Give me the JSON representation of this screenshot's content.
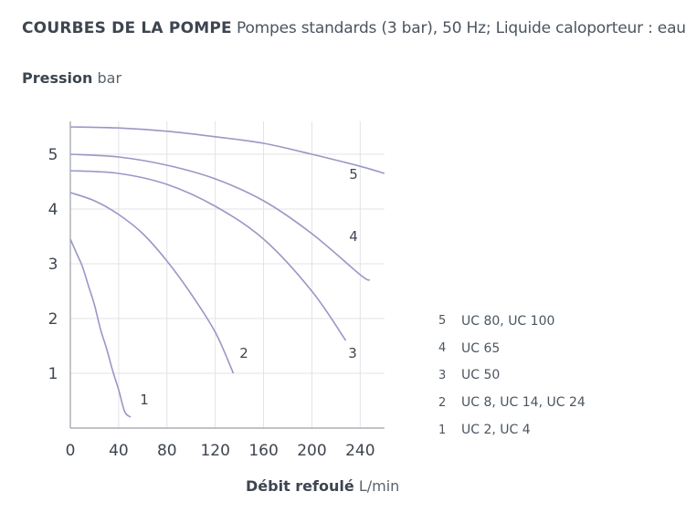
{
  "header": {
    "title_bold": "COURBES DE LA POMPE",
    "title_rest": "Pompes standards (3 bar), 50 Hz; Liquide caloporteur : eau"
  },
  "axis": {
    "y_bold": "Pression",
    "y_unit": "bar",
    "x_bold": "Débit refoulé",
    "x_unit": "L/min"
  },
  "colors": {
    "curve": "#9a97c6",
    "grid": "#e3e3e6",
    "axis": "#9aa0a7",
    "text": "#3d4550"
  },
  "chart_data": {
    "type": "line",
    "title": "COURBES DE LA POMPE Pompes standards (3 bar), 50 Hz; Liquide caloporteur : eau",
    "xlabel": "Débit refoulé L/min",
    "ylabel": "Pression bar",
    "xlim": [
      0,
      260
    ],
    "ylim": [
      0,
      5.6
    ],
    "xticks": [
      0,
      40,
      80,
      120,
      160,
      200,
      240
    ],
    "yticks": [
      1,
      2,
      3,
      4,
      5
    ],
    "grid": true,
    "legend_position": "right",
    "series": [
      {
        "name": "UC 2, UC 4",
        "number": "1",
        "x": [
          0,
          5,
          10,
          15,
          20,
          25,
          30,
          35,
          40,
          45,
          50
        ],
        "y": [
          3.45,
          3.2,
          2.95,
          2.6,
          2.25,
          1.8,
          1.45,
          1.05,
          0.7,
          0.3,
          0.2
        ]
      },
      {
        "name": "UC 8, UC 14, UC 24",
        "number": "2",
        "x": [
          0,
          20,
          40,
          60,
          80,
          100,
          120,
          135
        ],
        "y": [
          4.3,
          4.15,
          3.9,
          3.55,
          3.05,
          2.45,
          1.75,
          1.0
        ]
      },
      {
        "name": "UC 50",
        "number": "3",
        "x": [
          0,
          40,
          80,
          120,
          160,
          200,
          228
        ],
        "y": [
          4.7,
          4.65,
          4.45,
          4.05,
          3.45,
          2.5,
          1.6
        ]
      },
      {
        "name": "UC 65",
        "number": "4",
        "x": [
          0,
          40,
          80,
          120,
          160,
          200,
          240,
          248
        ],
        "y": [
          5.0,
          4.95,
          4.8,
          4.55,
          4.15,
          3.55,
          2.8,
          2.7
        ]
      },
      {
        "name": "UC 80, UC 100",
        "number": "5",
        "x": [
          0,
          40,
          80,
          120,
          160,
          200,
          240,
          260
        ],
        "y": [
          5.5,
          5.48,
          5.42,
          5.32,
          5.2,
          5.0,
          4.78,
          4.65
        ]
      }
    ]
  }
}
